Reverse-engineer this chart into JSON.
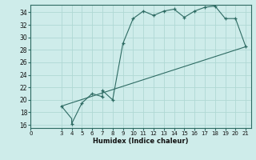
{
  "xlabel": "Humidex (Indice chaleur)",
  "bg_color": "#ceecea",
  "grid_color": "#b0d8d4",
  "line_color": "#2e6b63",
  "xlim": [
    0,
    21.5
  ],
  "ylim": [
    15.5,
    35.2
  ],
  "xticks": [
    0,
    3,
    4,
    5,
    6,
    7,
    8,
    9,
    10,
    11,
    12,
    13,
    14,
    15,
    16,
    17,
    18,
    19,
    20,
    21
  ],
  "yticks": [
    16,
    18,
    20,
    22,
    24,
    26,
    28,
    30,
    32,
    34
  ],
  "line1_x": [
    3,
    4,
    4,
    5,
    6,
    7,
    7,
    8,
    9,
    10,
    11,
    12,
    13,
    14,
    15,
    16,
    17,
    18,
    19,
    20,
    21
  ],
  "line1_y": [
    19,
    17,
    16.2,
    19.5,
    21,
    20.5,
    21.5,
    20,
    29,
    33,
    34.2,
    33.5,
    34.2,
    34.5,
    33.2,
    34.2,
    34.8,
    35,
    33,
    33,
    28.5
  ],
  "line2_x": [
    3,
    21
  ],
  "line2_y": [
    19,
    28.5
  ],
  "marker_x": [
    3,
    4,
    5,
    6,
    7,
    7,
    8,
    9,
    10,
    11,
    12,
    13,
    14,
    15,
    16,
    17,
    18,
    19,
    20,
    21
  ],
  "marker_y": [
    19,
    16.2,
    19.5,
    21,
    20.5,
    21.5,
    20,
    29,
    33,
    34.2,
    33.5,
    34.2,
    34.5,
    33.2,
    34.2,
    34.8,
    35,
    33,
    33,
    28.5
  ]
}
